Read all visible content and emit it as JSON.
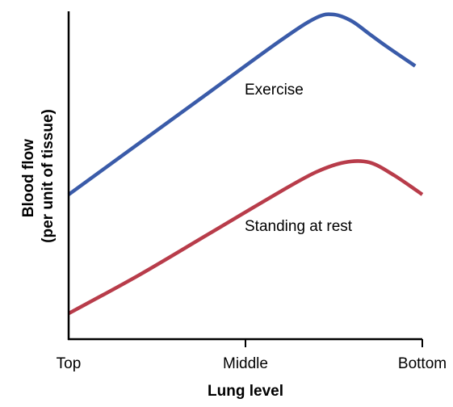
{
  "chart_data": {
    "type": "line",
    "title": "",
    "xlabel": "Lung level",
    "ylabel_lines": [
      "Blood flow",
      "(per unit of tissue)"
    ],
    "x_ticks": [
      "Top",
      "Middle",
      "Bottom"
    ],
    "xlim": [
      0,
      1
    ],
    "ylim": [
      0,
      1
    ],
    "grid": false,
    "legend": "inline",
    "series": [
      {
        "name": "Exercise",
        "color": "#3a5ba9",
        "points": [
          [
            0.0,
            0.45
          ],
          [
            0.2,
            0.61
          ],
          [
            0.4,
            0.77
          ],
          [
            0.6,
            0.93
          ],
          [
            0.7,
            1.0
          ],
          [
            0.75,
            1.01
          ],
          [
            0.8,
            0.99
          ],
          [
            0.85,
            0.95
          ],
          [
            0.9,
            0.91
          ],
          [
            0.98,
            0.85
          ]
        ]
      },
      {
        "name": "Standing at rest",
        "color": "#b83c4a",
        "points": [
          [
            0.0,
            0.08
          ],
          [
            0.2,
            0.2
          ],
          [
            0.4,
            0.33
          ],
          [
            0.6,
            0.46
          ],
          [
            0.7,
            0.52
          ],
          [
            0.78,
            0.55
          ],
          [
            0.85,
            0.55
          ],
          [
            0.92,
            0.51
          ],
          [
            1.0,
            0.45
          ]
        ]
      }
    ]
  }
}
